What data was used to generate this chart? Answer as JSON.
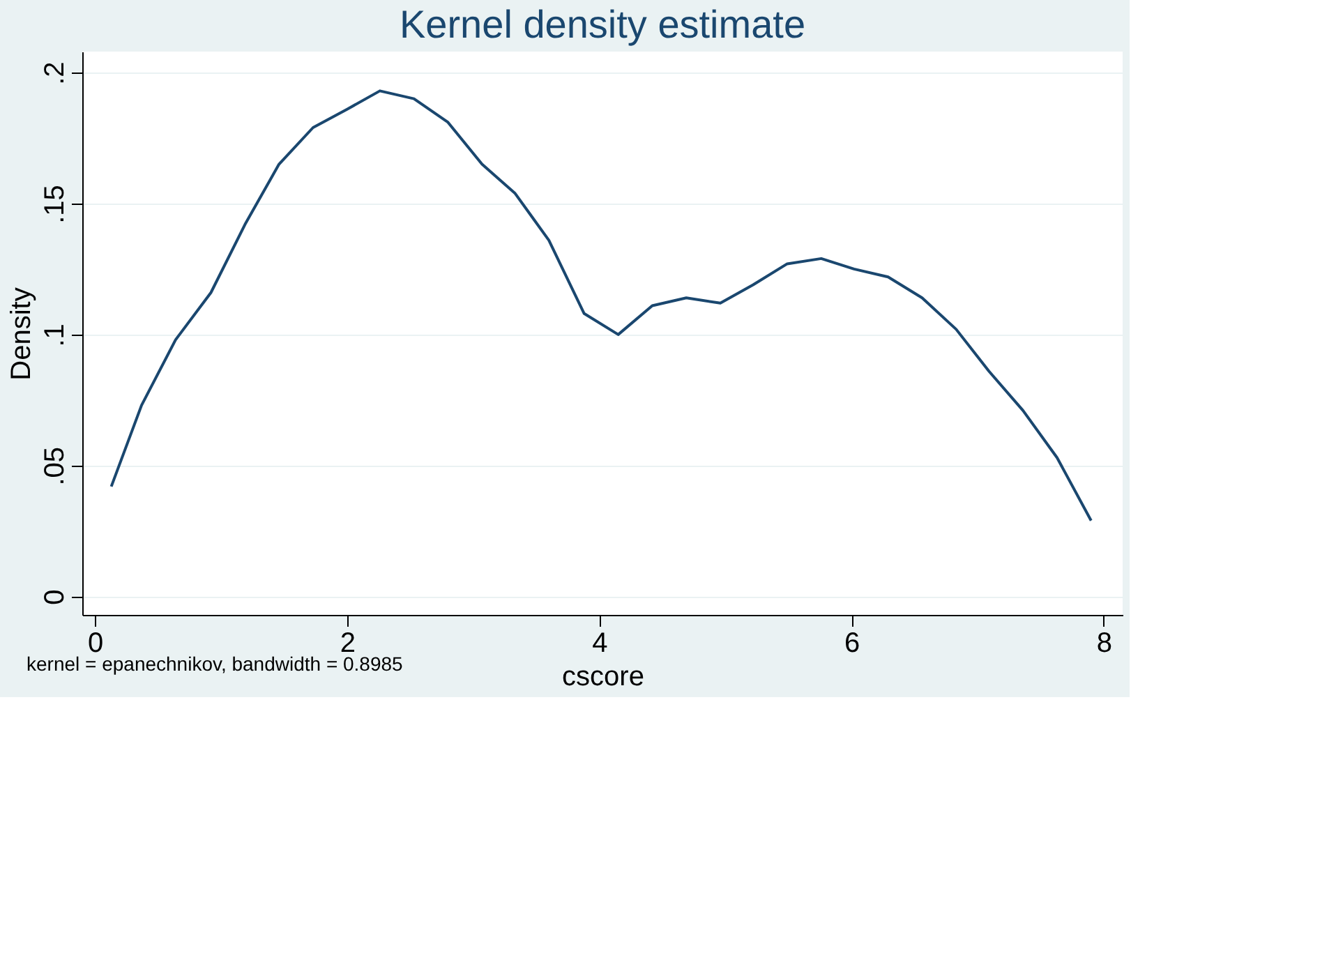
{
  "chart_data": {
    "type": "line",
    "title": "Kernel density estimate",
    "xlabel": "cscore",
    "ylabel": "Density",
    "annotations": [
      "kernel = epanechnikov, bandwidth = 0.8985"
    ],
    "x": [
      0.13,
      0.37,
      0.64,
      0.92,
      1.19,
      1.46,
      1.73,
      2.0,
      2.26,
      2.53,
      2.8,
      3.07,
      3.33,
      3.6,
      3.88,
      4.15,
      4.42,
      4.69,
      4.96,
      5.22,
      5.49,
      5.76,
      6.02,
      6.29,
      6.56,
      6.83,
      7.09,
      7.36,
      7.63,
      7.9
    ],
    "series": [
      {
        "color": "#1a476f",
        "values": [
          0.042,
          0.073,
          0.098,
          0.116,
          0.142,
          0.165,
          0.179,
          0.186,
          0.193,
          0.19,
          0.181,
          0.165,
          0.154,
          0.136,
          0.108,
          0.1,
          0.111,
          0.114,
          0.112,
          0.119,
          0.127,
          0.129,
          0.125,
          0.122,
          0.114,
          0.102,
          0.086,
          0.071,
          0.053,
          0.029
        ]
      }
    ],
    "xlim": [
      -0.1,
      8.15
    ],
    "xticks": [
      0,
      2,
      4,
      6,
      8
    ],
    "ylim": [
      -0.007,
      0.208
    ],
    "yticks": [
      0,
      {
        "value": 0.05,
        "label": ".05"
      },
      {
        "value": 0.1,
        "label": ".1"
      },
      {
        "value": 0.15,
        "label": ".15"
      },
      {
        "value": 0.2,
        "label": ".2"
      }
    ],
    "grid": "y",
    "legend": false,
    "marker": "none",
    "line_style": "solid"
  }
}
